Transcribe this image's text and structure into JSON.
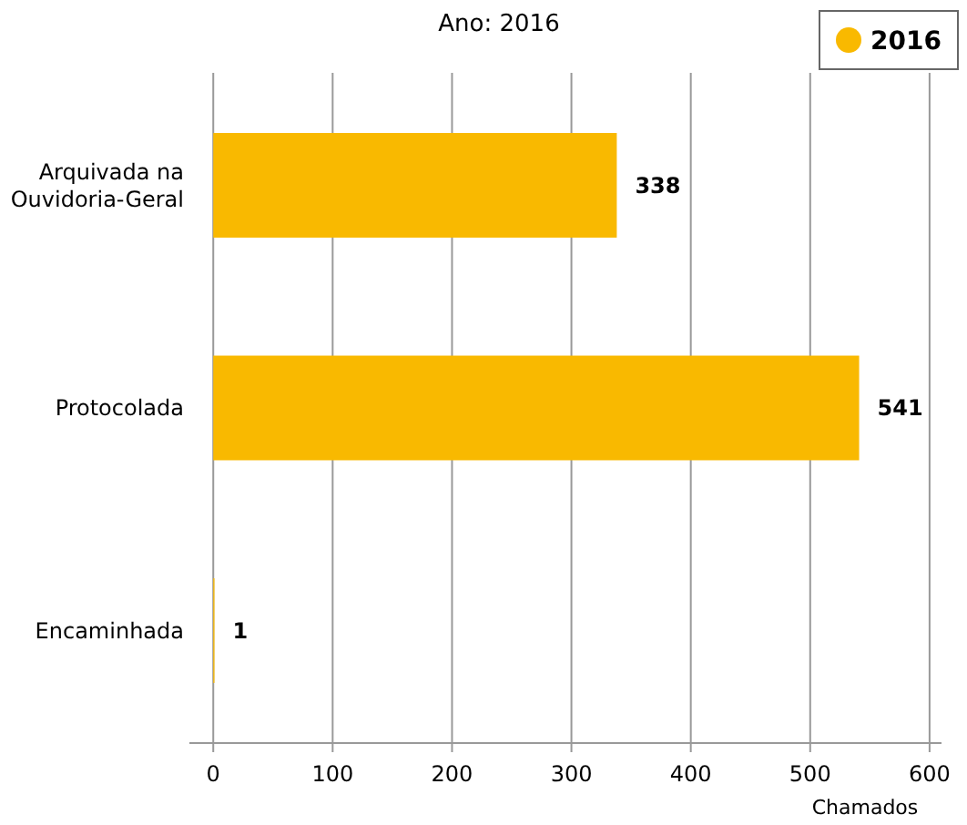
{
  "chart_data": {
    "type": "bar",
    "orientation": "horizontal",
    "title": "Ano: 2016",
    "xlabel": "Chamados",
    "categories": [
      "Arquivada na Ouvidoria-Geral",
      "Protocolada",
      "Encaminhada"
    ],
    "series": [
      {
        "name": "2016",
        "color": "#f9b900",
        "values": [
          338,
          541,
          1
        ]
      }
    ],
    "xlim": [
      -20,
      610
    ],
    "xticks": [
      0,
      100,
      200,
      300,
      400,
      500,
      600
    ],
    "grid": "x",
    "legend": "top right",
    "data_labels": true
  }
}
